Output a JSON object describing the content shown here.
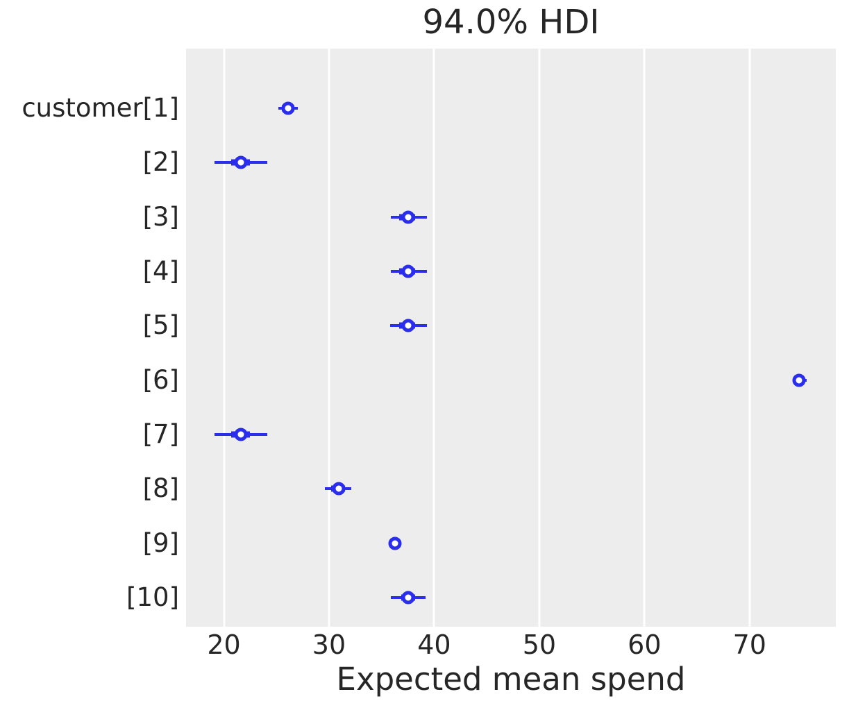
{
  "chart_data": {
    "type": "forest",
    "title": "94.0% HDI",
    "xlabel": "Expected mean spend",
    "hdi_prob": 0.94,
    "xlim": [
      16.4,
      78.2
    ],
    "xticks": [
      "20",
      "30",
      "40",
      "50",
      "60",
      "70"
    ],
    "xtick_values": [
      20,
      30,
      40,
      50,
      60,
      70
    ],
    "grid": {
      "vertical": true,
      "horizontal": false,
      "gridline_color": "#ffffff"
    },
    "legend": "none",
    "colors": {
      "series": "#2a2eec",
      "plot_background": "#ededed",
      "figure_background": "#ffffff",
      "text": "#262626",
      "marker_face": "#ffffff"
    },
    "rows": [
      {
        "label": "customer[1]",
        "median": 26.1,
        "hdi_low": 25.2,
        "hdi_high": 27.0,
        "quartile_low": 25.5,
        "quartile_high": 26.7
      },
      {
        "label": "[2]",
        "median": 21.6,
        "hdi_low": 19.1,
        "hdi_high": 24.1,
        "quartile_low": 20.7,
        "quartile_high": 22.5
      },
      {
        "label": "[3]",
        "median": 37.5,
        "hdi_low": 35.9,
        "hdi_high": 39.3,
        "quartile_low": 36.7,
        "quartile_high": 38.2
      },
      {
        "label": "[4]",
        "median": 37.5,
        "hdi_low": 35.9,
        "hdi_high": 39.3,
        "quartile_low": 36.7,
        "quartile_high": 38.2
      },
      {
        "label": "[5]",
        "median": 37.5,
        "hdi_low": 35.8,
        "hdi_high": 39.3,
        "quartile_low": 36.7,
        "quartile_high": 38.2
      },
      {
        "label": "[6]",
        "median": 74.7,
        "hdi_low": 74.1,
        "hdi_high": 75.4,
        "quartile_low": 74.4,
        "quartile_high": 75.1
      },
      {
        "label": "[7]",
        "median": 21.6,
        "hdi_low": 19.1,
        "hdi_high": 24.1,
        "quartile_low": 20.7,
        "quartile_high": 22.5
      },
      {
        "label": "[8]",
        "median": 30.9,
        "hdi_low": 29.6,
        "hdi_high": 32.1,
        "quartile_low": 30.2,
        "quartile_high": 31.5
      },
      {
        "label": "[9]",
        "median": 36.3,
        "hdi_low": 36.2,
        "hdi_high": 36.4,
        "quartile_low": 36.25,
        "quartile_high": 36.35
      },
      {
        "label": "[10]",
        "median": 37.5,
        "hdi_low": 35.9,
        "hdi_high": 39.2,
        "quartile_low": 36.9,
        "quartile_high": 38.2
      }
    ]
  }
}
